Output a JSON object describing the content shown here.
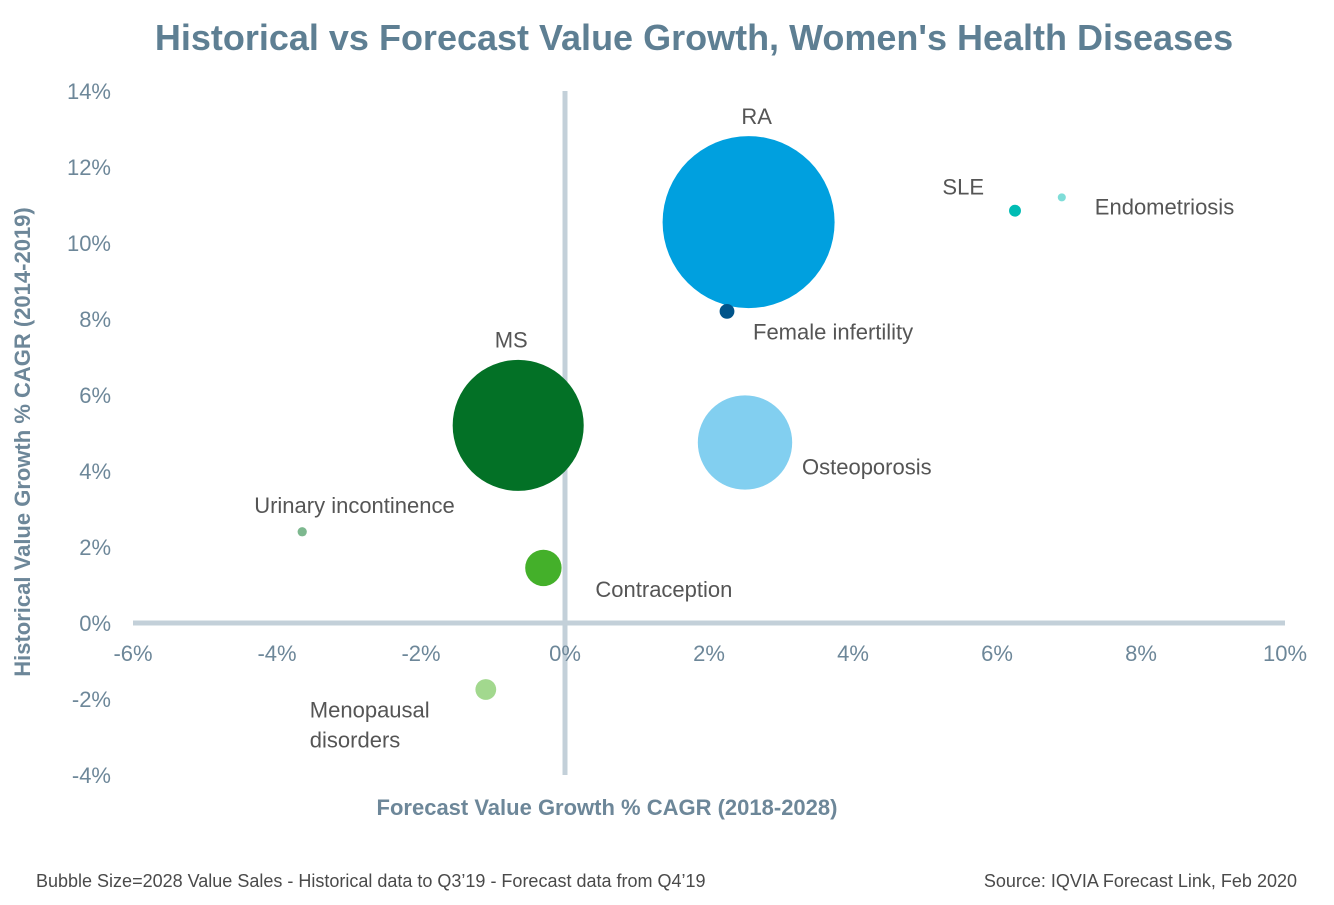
{
  "chart_data": {
    "type": "scatter",
    "title": "Historical vs Forecast Value Growth, Women's Health Diseases",
    "xlabel": "Forecast Value Growth % CAGR (2018-2028)",
    "ylabel": "Historical Value Growth % CAGR (2014-2019)",
    "xlim": [
      -6,
      10
    ],
    "ylim": [
      -4,
      14
    ],
    "xticks": [
      -6,
      -4,
      -2,
      0,
      2,
      4,
      6,
      8,
      10
    ],
    "yticks": [
      -4,
      -2,
      0,
      2,
      4,
      6,
      8,
      10,
      12,
      14
    ],
    "xtick_labels": [
      "-6%",
      "-4%",
      "-2%",
      "0%",
      "2%",
      "4%",
      "6%",
      "8%",
      "10%"
    ],
    "ytick_labels": [
      "-4%",
      "-2%",
      "0%",
      "2%",
      "4%",
      "6%",
      "8%",
      "10%",
      "12%",
      "14%"
    ],
    "grid": false,
    "legend": "none",
    "points": [
      {
        "name": "RA",
        "label_lines": [
          "RA"
        ],
        "x": 2.55,
        "y": 10.55,
        "size": 1.0,
        "color": "#00A0DF"
      },
      {
        "name": "SLE",
        "label_lines": [
          "SLE"
        ],
        "x": 6.25,
        "y": 10.85,
        "size": 0.0048,
        "color": "#00BCB4"
      },
      {
        "name": "Endometriosis",
        "label_lines": [
          "Endometriosis"
        ],
        "x": 6.9,
        "y": 11.2,
        "size": 0.0022,
        "color": "#7FDDD8"
      },
      {
        "name": "Female infertility",
        "label_lines": [
          "Female infertility"
        ],
        "x": 2.25,
        "y": 8.2,
        "size": 0.0074,
        "color": "#00548A"
      },
      {
        "name": "MS",
        "label_lines": [
          "MS"
        ],
        "x": -0.65,
        "y": 5.2,
        "size": 0.5805,
        "color": "#037126"
      },
      {
        "name": "Osteoporosis",
        "label_lines": [
          "Osteoporosis"
        ],
        "x": 2.5,
        "y": 4.75,
        "size": 0.301,
        "color": "#82CFF0"
      },
      {
        "name": "Urinary incontinence",
        "label_lines": [
          "Urinary incontinence"
        ],
        "x": -3.65,
        "y": 2.4,
        "size": 0.0029,
        "color": "#7DB88F"
      },
      {
        "name": "Contraception",
        "label_lines": [
          "Contraception"
        ],
        "x": -0.3,
        "y": 1.45,
        "size": 0.0448,
        "color": "#44B02A"
      },
      {
        "name": "Menopausal disorders",
        "label_lines": [
          "Menopausal",
          "disorders"
        ],
        "x": -1.1,
        "y": -1.75,
        "size": 0.0146,
        "color": "#A2D88E"
      }
    ],
    "colors": {
      "title": "#5E7F93",
      "axis_text": "#6D8799",
      "axis_line": "#C3D0D9",
      "label_text": "#555555",
      "footnote_text": "#4A4A4A"
    }
  },
  "footnotes": {
    "left": "Bubble Size=2028 Value Sales - Historical data to Q3’19 - Forecast data from Q4’19",
    "right": "Source: IQVIA Forecast Link, Feb 2020"
  }
}
